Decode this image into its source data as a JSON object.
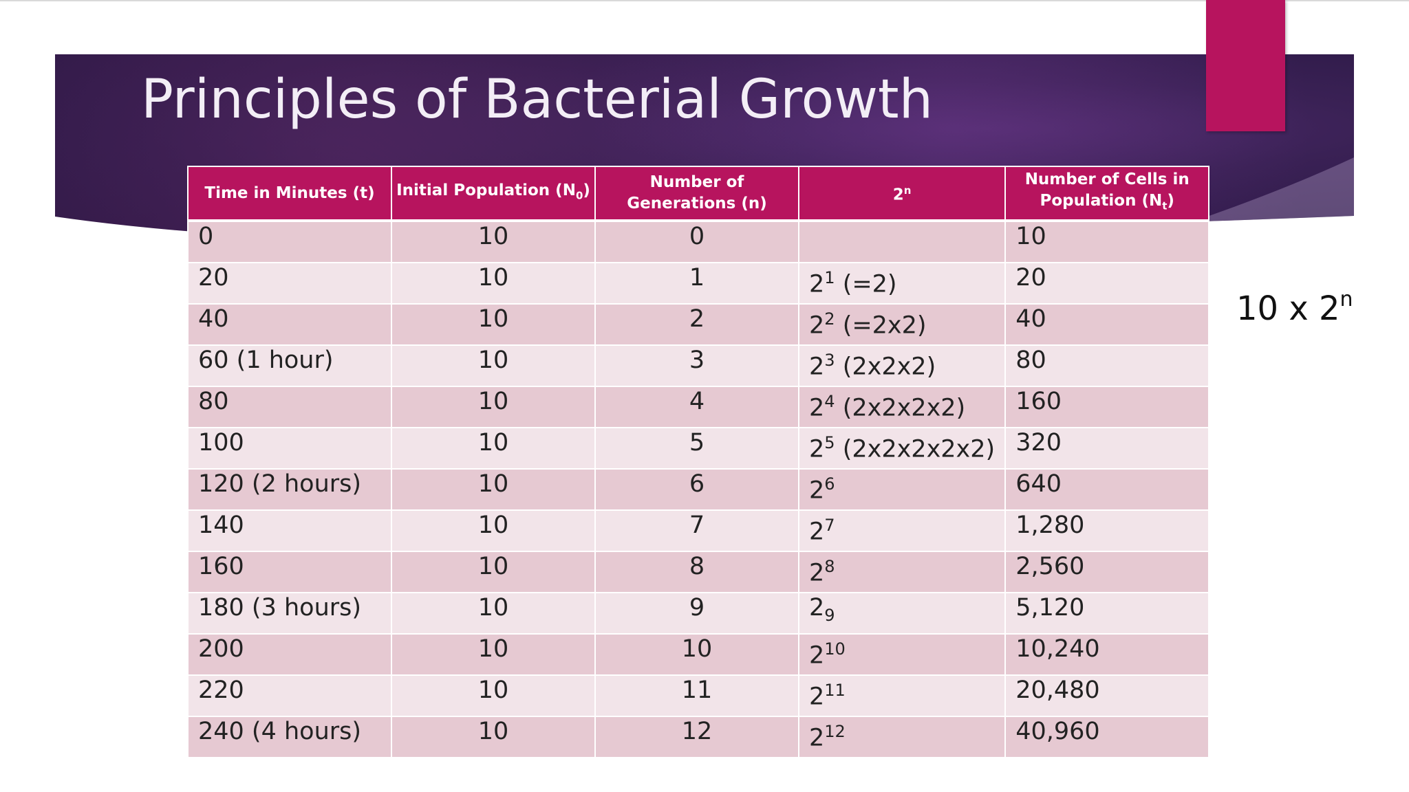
{
  "slide": {
    "title": "Principles of Bacterial Growth",
    "formula_base": "10 x 2",
    "formula_exp": "n",
    "colors": {
      "accent": "#b7145e",
      "banner": "#2e1a48",
      "row_dark": "#e6c9d2",
      "row_light": "#f2e4e9"
    }
  },
  "table": {
    "headers": [
      {
        "text": "Time in Minutes (t)"
      },
      {
        "text": "Initial Population (N",
        "sub": "0",
        "after": ")"
      },
      {
        "text": "Number of Generations (n)"
      },
      {
        "text": "2",
        "sup": "n"
      },
      {
        "text": "Number of Cells in Population (N",
        "sub": "t",
        "after": ")"
      }
    ],
    "rows": [
      {
        "time": "0",
        "initial": "10",
        "gen": "0",
        "pow_base": "",
        "pow_exp": "",
        "pow_mode": "sup",
        "pow_expl": "",
        "cells": "10"
      },
      {
        "time": "20",
        "initial": "10",
        "gen": "1",
        "pow_base": "2",
        "pow_exp": "1",
        "pow_mode": "sup",
        "pow_expl": " (=2)",
        "cells": "20"
      },
      {
        "time": "40",
        "initial": "10",
        "gen": "2",
        "pow_base": "2",
        "pow_exp": "2",
        "pow_mode": "sup",
        "pow_expl": " (=2x2)",
        "cells": "40"
      },
      {
        "time": "60 (1 hour)",
        "initial": "10",
        "gen": "3",
        "pow_base": "2",
        "pow_exp": "3",
        "pow_mode": "sup",
        "pow_expl": " (2x2x2)",
        "cells": "80"
      },
      {
        "time": "80",
        "initial": "10",
        "gen": "4",
        "pow_base": "2",
        "pow_exp": "4",
        "pow_mode": "sup",
        "pow_expl": " (2x2x2x2)",
        "cells": "160"
      },
      {
        "time": "100",
        "initial": "10",
        "gen": "5",
        "pow_base": "2",
        "pow_exp": "5",
        "pow_mode": "sup",
        "pow_expl": " (2x2x2x2x2)",
        "cells": "320"
      },
      {
        "time": "120 (2 hours)",
        "initial": "10",
        "gen": "6",
        "pow_base": "2",
        "pow_exp": "6",
        "pow_mode": "sup",
        "pow_expl": "",
        "cells": "640"
      },
      {
        "time": "140",
        "initial": "10",
        "gen": "7",
        "pow_base": "2",
        "pow_exp": "7",
        "pow_mode": "sup",
        "pow_expl": "",
        "cells": "1,280"
      },
      {
        "time": "160",
        "initial": "10",
        "gen": "8",
        "pow_base": "2",
        "pow_exp": "8",
        "pow_mode": "sup",
        "pow_expl": "",
        "cells": "2,560"
      },
      {
        "time": "180 (3 hours)",
        "initial": "10",
        "gen": "9",
        "pow_base": "2",
        "pow_exp": "9",
        "pow_mode": "sub",
        "pow_expl": "",
        "cells": "5,120"
      },
      {
        "time": "200",
        "initial": "10",
        "gen": "10",
        "pow_base": "2",
        "pow_exp": "10",
        "pow_mode": "sup",
        "pow_expl": "",
        "cells": "10,240"
      },
      {
        "time": "220",
        "initial": "10",
        "gen": "11",
        "pow_base": "2",
        "pow_exp": "11",
        "pow_mode": "sup",
        "pow_expl": "",
        "cells": "20,480"
      },
      {
        "time": "240 (4 hours)",
        "initial": "10",
        "gen": "12",
        "pow_base": "2",
        "pow_exp": "12",
        "pow_mode": "sup",
        "pow_expl": "",
        "cells": "40,960"
      }
    ]
  }
}
